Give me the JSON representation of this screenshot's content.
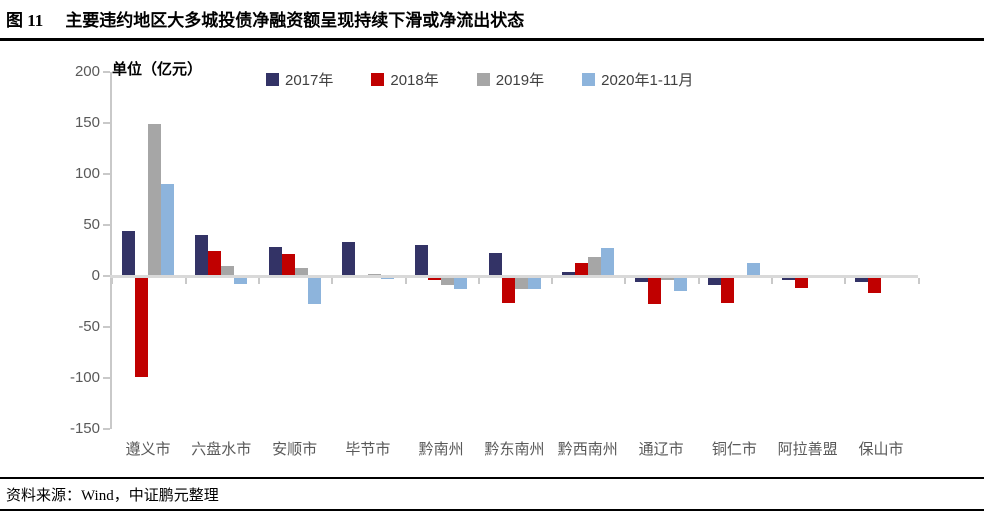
{
  "header": {
    "fig_no": "图 11",
    "title": "主要违约地区大多城投债净融资额呈现持续下滑或净流出状态"
  },
  "footer": {
    "source": "资料来源：Wind，中证鹏元整理"
  },
  "chart_data": {
    "type": "bar",
    "title": "主要违约地区大多城投债净融资额呈现持续下滑或净流出状态",
    "unit_label": "单位（亿元）",
    "categories": [
      "遵义市",
      "六盘水市",
      "安顺市",
      "毕节市",
      "黔南州",
      "黔东南州",
      "黔西南州",
      "通辽市",
      "铜仁市",
      "阿拉善盟",
      "保山市"
    ],
    "series": [
      {
        "name": "2017年",
        "color": "#333366",
        "values": [
          44,
          40,
          28,
          33,
          30,
          23,
          4,
          -6,
          -9,
          -4,
          -6
        ]
      },
      {
        "name": "2018年",
        "color": "#c00000",
        "values": [
          -99,
          25,
          22,
          0,
          -4,
          -26,
          13,
          -27,
          -26,
          -12,
          -17
        ]
      },
      {
        "name": "2019年",
        "color": "#a6a6a6",
        "values": [
          149,
          10,
          8,
          2,
          -9,
          -13,
          19,
          -4,
          0,
          0,
          0
        ]
      },
      {
        "name": "2020年1-11月",
        "color": "#8db4dc",
        "values": [
          90,
          -8,
          -27,
          -3,
          -13,
          -13,
          27,
          -15,
          13,
          0,
          0
        ]
      }
    ],
    "y_ticks": [
      200,
      150,
      100,
      50,
      0,
      -50,
      -100,
      -150
    ],
    "ylim": [
      -150,
      200
    ],
    "xlabel": "",
    "ylabel": "",
    "grid": false,
    "legend_position": "top",
    "axis_color": "#c9c9c9",
    "zero_line_color": "#d9d9d9",
    "tick_label_color": "#595959"
  }
}
